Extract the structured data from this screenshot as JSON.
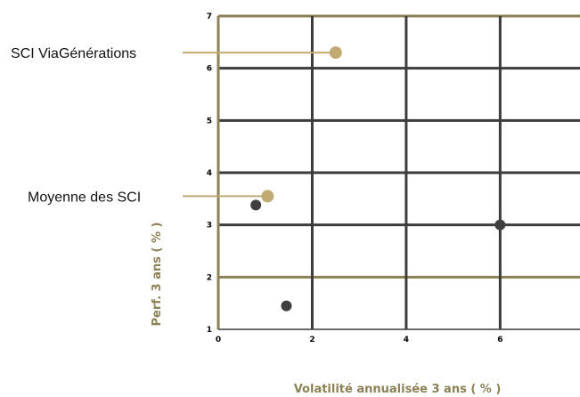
{
  "chart_data": {
    "type": "scatter",
    "xlabel": "Volatilité annualisée 3 ans ( % )",
    "ylabel": "Perf. 3 ans ( % )",
    "xlim": [
      0,
      7.7
    ],
    "ylim": [
      1,
      7
    ],
    "x_ticks": [
      0,
      2,
      4,
      6
    ],
    "y_ticks": [
      1,
      2,
      3,
      4,
      5,
      6,
      7
    ],
    "grid": true,
    "series": [
      {
        "points": [
          {
            "x": 2.5,
            "y": 6.3,
            "label": "SCI ViaGénérations"
          },
          {
            "x": 1.05,
            "y": 3.55,
            "label": "Moyenne des SCI"
          }
        ]
      },
      {
        "points": [
          {
            "x": 0.8,
            "y": 3.38
          },
          {
            "x": 1.45,
            "y": 1.45
          },
          {
            "x": 6.0,
            "y": 3.0
          }
        ]
      }
    ]
  },
  "colors": {
    "accent": "#8b8154",
    "grid_dark": "#3c3c3c",
    "highlight_point": "#c2aa73",
    "peer_point": "#3f3f3f"
  }
}
